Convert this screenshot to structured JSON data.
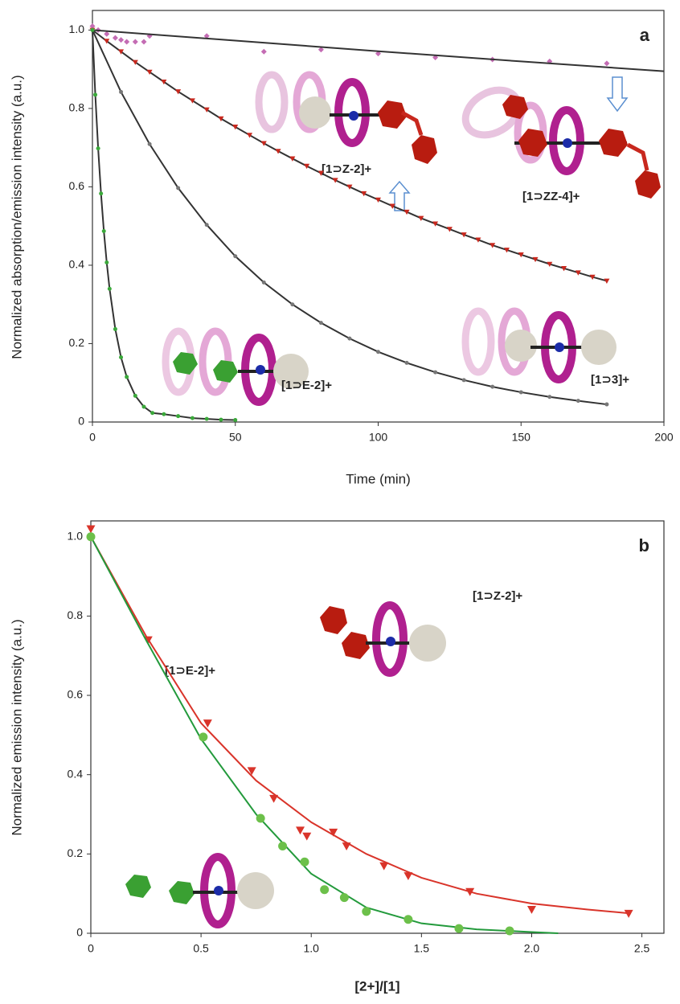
{
  "chart_data": [
    {
      "type": "scatter",
      "panel_label": "a",
      "x_label": "Time (min)",
      "y_label": "Normalized absorption/emission intensity (a.u.)",
      "xlim": [
        0,
        200
      ],
      "ylim": [
        0,
        1.05
      ],
      "xticks": [
        0,
        50,
        100,
        150,
        200
      ],
      "yticks": [
        0,
        0.2,
        0.4,
        0.6,
        0.8,
        {
          "value": 1,
          "label": "1.0"
        }
      ],
      "annotations": [
        "[1⊃Z-2]+",
        "[1⊃ZZ-4]+",
        "[1⊃3]+",
        "[1⊃E-2]+"
      ],
      "series": [
        {
          "color": "#c46cb4",
          "marker": "diamond",
          "line": false,
          "x": [
            0,
            2,
            5,
            8,
            10,
            12,
            15,
            18,
            20,
            40,
            60,
            80,
            100,
            120,
            140,
            160,
            180
          ],
          "values": [
            1.01,
            1.0,
            0.99,
            0.98,
            0.975,
            0.97,
            0.97,
            0.97,
            0.985,
            0.985,
            0.945,
            0.95,
            0.94,
            0.93,
            0.925,
            0.92,
            0.915
          ]
        },
        {
          "color": "#333333",
          "marker": "none",
          "line": true,
          "x": [
            0,
            50,
            100,
            150,
            200
          ],
          "values": [
            1.0,
            0.973,
            0.946,
            0.92,
            0.895
          ]
        },
        {
          "color": "#c8281e",
          "marker": "triangle",
          "line": true,
          "x": [
            0,
            5,
            10,
            15,
            20,
            25,
            30,
            35,
            40,
            45,
            50,
            55,
            60,
            65,
            70,
            75,
            80,
            85,
            90,
            95,
            100,
            105,
            110,
            115,
            120,
            125,
            130,
            135,
            140,
            145,
            150,
            155,
            160,
            165,
            170,
            175,
            180
          ],
          "values": [
            1.0,
            0.972,
            0.945,
            0.918,
            0.893,
            0.868,
            0.843,
            0.82,
            0.797,
            0.774,
            0.753,
            0.732,
            0.711,
            0.691,
            0.672,
            0.653,
            0.635,
            0.617,
            0.6,
            0.583,
            0.567,
            0.551,
            0.536,
            0.52,
            0.506,
            0.492,
            0.478,
            0.465,
            0.451,
            0.439,
            0.427,
            0.415,
            0.403,
            0.392,
            0.381,
            0.37,
            0.36
          ]
        },
        {
          "color": "#777777",
          "marker": "circle",
          "line": true,
          "x": [
            0,
            10,
            20,
            30,
            40,
            50,
            60,
            70,
            80,
            90,
            100,
            110,
            120,
            130,
            140,
            150,
            160,
            170,
            180
          ],
          "values": [
            1.0,
            0.842,
            0.709,
            0.597,
            0.503,
            0.423,
            0.356,
            0.3,
            0.253,
            0.213,
            0.179,
            0.151,
            0.127,
            0.107,
            0.09,
            0.076,
            0.064,
            0.054,
            0.045
          ]
        },
        {
          "color": "#3aa83a",
          "marker": "circle",
          "line": true,
          "x": [
            0,
            1,
            2,
            3,
            4,
            5,
            6,
            8,
            10,
            12,
            15,
            18,
            21,
            25,
            30,
            35,
            40,
            45,
            50
          ],
          "values": [
            1.0,
            0.835,
            0.698,
            0.583,
            0.487,
            0.407,
            0.34,
            0.237,
            0.165,
            0.115,
            0.067,
            0.039,
            0.023,
            0.02,
            0.015,
            0.01,
            0.008,
            0.006,
            0.005
          ]
        }
      ]
    },
    {
      "type": "scatter",
      "panel_label": "b",
      "x_label": "[2+]/[1]",
      "y_label": "Normalized emission intensity (a.u.)",
      "xlim": [
        0,
        2.6
      ],
      "ylim": [
        0,
        1.04
      ],
      "xticks": [
        0,
        0.5,
        {
          "value": 1,
          "label": "1.0"
        },
        1.5,
        {
          "value": 2,
          "label": "2.0"
        },
        2.5
      ],
      "yticks": [
        0,
        0.2,
        0.4,
        0.6,
        0.8,
        {
          "value": 1,
          "label": "1.0"
        }
      ],
      "annotations": [
        "[1⊃Z-2]+",
        "[1⊃E-2]+"
      ],
      "series": [
        {
          "color": "#d9342a",
          "marker": "none",
          "line": true,
          "x": [
            0,
            0.25,
            0.5,
            0.75,
            1,
            1.25,
            1.5,
            1.75,
            2,
            2.25,
            2.45
          ],
          "values": [
            1.0,
            0.75,
            0.53,
            0.385,
            0.28,
            0.2,
            0.14,
            0.1,
            0.075,
            0.06,
            0.05
          ]
        },
        {
          "color": "#d9342a",
          "marker": "triangle",
          "line": false,
          "x": [
            0,
            0.26,
            0.53,
            0.73,
            0.83,
            0.95,
            0.98,
            1.1,
            1.16,
            1.33,
            1.44,
            1.72,
            2.0,
            2.44
          ],
          "values": [
            1.02,
            0.74,
            0.53,
            0.41,
            0.34,
            0.26,
            0.245,
            0.255,
            0.22,
            0.17,
            0.145,
            0.105,
            0.06,
            0.05
          ]
        },
        {
          "color": "#239a3c",
          "marker": "none",
          "line": true,
          "x": [
            0,
            0.25,
            0.5,
            0.75,
            1,
            1.25,
            1.5,
            1.75,
            2,
            2.12
          ],
          "values": [
            1.0,
            0.74,
            0.49,
            0.3,
            0.15,
            0.065,
            0.025,
            0.01,
            0.003,
            0.0
          ]
        },
        {
          "color": "#6cc04a",
          "marker": "circle",
          "line": false,
          "x": [
            0,
            0.51,
            0.77,
            0.87,
            0.97,
            1.06,
            1.15,
            1.25,
            1.44,
            1.67,
            1.9
          ],
          "values": [
            1.0,
            0.495,
            0.29,
            0.22,
            0.18,
            0.11,
            0.09,
            0.055,
            0.035,
            0.012,
            0.006
          ]
        }
      ]
    }
  ]
}
